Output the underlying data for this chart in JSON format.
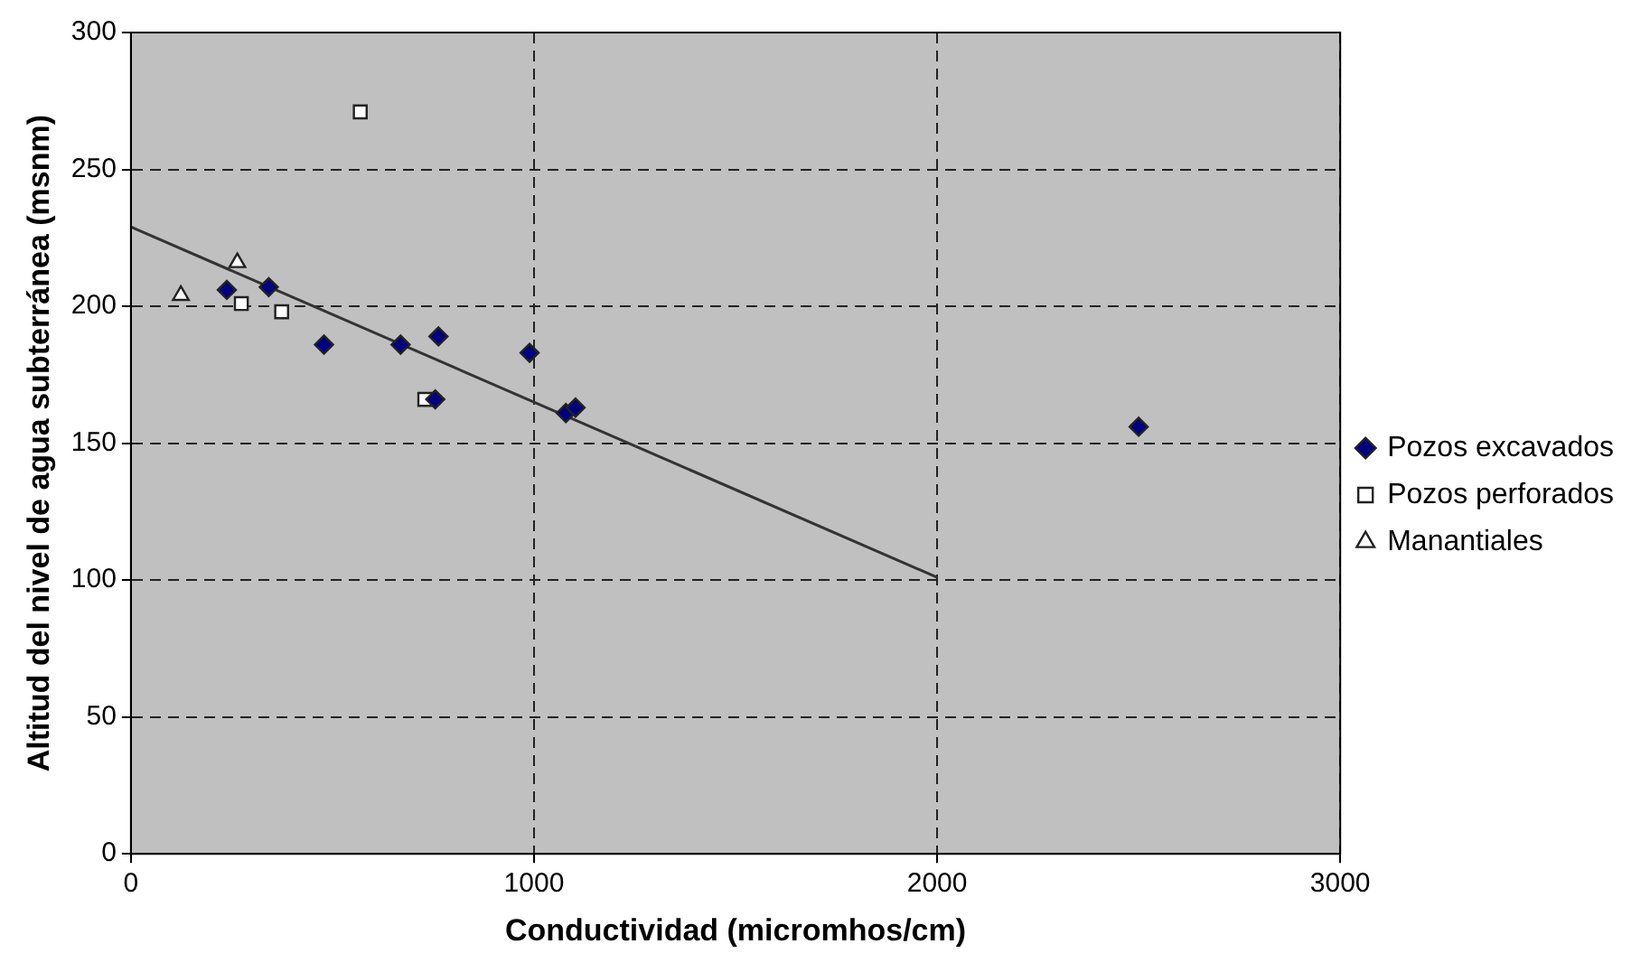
{
  "chart_data": {
    "type": "scatter",
    "xlabel": "Conductividad (micromhos/cm)",
    "ylabel": "Altitud del nivel de agua subterránea (msnm)",
    "xlim": [
      0,
      3000
    ],
    "xticks": [
      0,
      1000,
      2000,
      3000
    ],
    "ylim": [
      0,
      300
    ],
    "yticks": [
      0,
      50,
      100,
      150,
      200,
      250,
      300
    ],
    "grid": true,
    "legend": "right",
    "series": [
      {
        "name": "Pozos excavados",
        "color": "#000080",
        "marker": "diamond",
        "x": [
          238,
          342,
          479,
          669,
          755,
          763,
          989,
          1079,
          1103,
          2500
        ],
        "values": [
          206,
          207,
          186,
          186,
          166,
          189,
          183,
          161,
          163,
          156
        ]
      },
      {
        "name": "Pozos perforados",
        "color": "#ffffff",
        "marker": "square",
        "x": [
          274,
          374,
          569,
          729
        ],
        "values": [
          201,
          198,
          271,
          166
        ]
      },
      {
        "name": "Manantiales",
        "color": "#ffffff",
        "marker": "triangle",
        "x": [
          124,
          264
        ],
        "values": [
          204,
          216
        ]
      },
      {
        "type": "line",
        "color": "#333333",
        "marker": "none",
        "x": [
          0,
          2000
        ],
        "values": [
          229,
          101
        ]
      }
    ]
  }
}
